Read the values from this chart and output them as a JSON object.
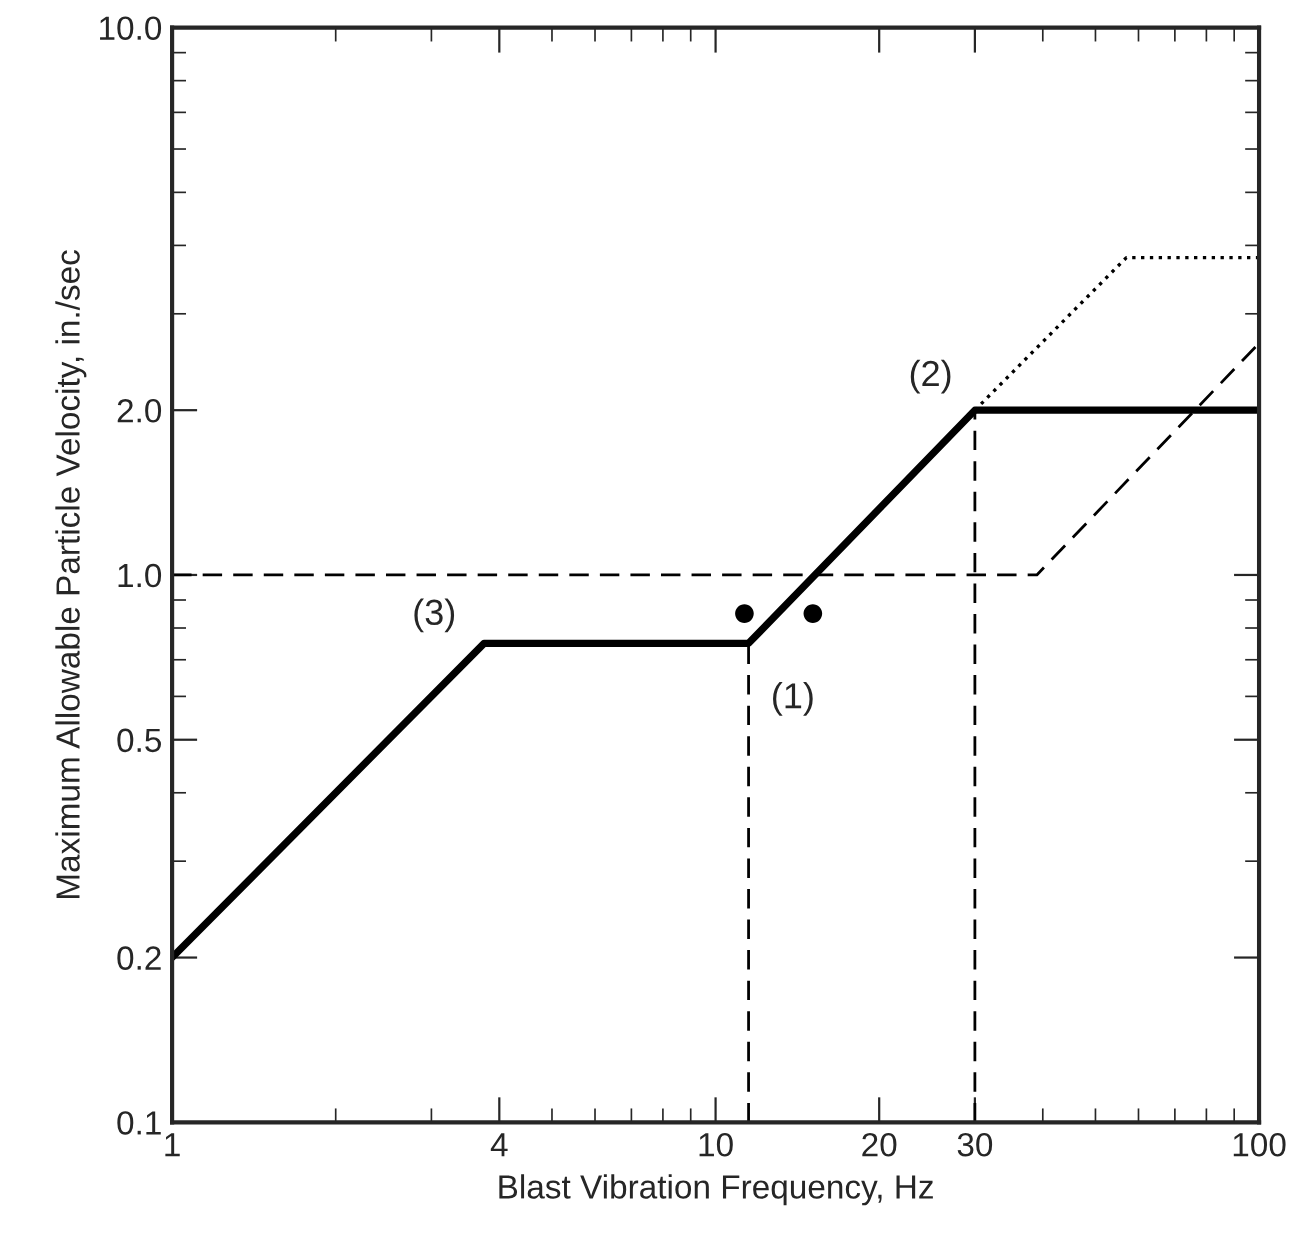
{
  "chart_data": {
    "type": "line",
    "xlabel": "Blast Vibration Frequency, Hz",
    "ylabel": "Maximum Allowable Particle Velocity, in./sec",
    "log": "xy",
    "grid": false,
    "legend": false,
    "xlim": [
      1,
      100
    ],
    "ylim": [
      0.1,
      10
    ],
    "xticks": [
      1,
      4,
      10,
      20,
      30,
      100
    ],
    "yticks": [
      0.1,
      0.2,
      0.5,
      {
        "value": 1,
        "label": "1.0"
      },
      {
        "value": 2,
        "label": "2.0"
      },
      {
        "value": 10,
        "label": "10.0"
      }
    ],
    "series": [
      {
        "color": "#000000",
        "line_style": "solid",
        "x": [
          1,
          3.75,
          11.5,
          30,
          100
        ],
        "values": [
          0.2,
          0.75,
          0.75,
          2.0,
          2.0
        ]
      },
      {
        "color": "#000000",
        "line_style": "dotted",
        "x": [
          30,
          57,
          100
        ],
        "values": [
          2.0,
          3.8,
          3.8
        ]
      },
      {
        "color": "#000000",
        "line_style": "dashed",
        "x": [
          1,
          39,
          100
        ],
        "values": [
          1.0,
          1.0,
          2.65
        ]
      },
      {
        "color": "#000000",
        "line_style": "dashed",
        "x": [
          11.5,
          11.5
        ],
        "values": [
          0.1,
          0.75
        ]
      },
      {
        "color": "#000000",
        "line_style": "dashed",
        "x": [
          30,
          30
        ],
        "values": [
          0.1,
          2.0
        ]
      },
      {
        "type": "scatter",
        "color": "#000000",
        "marker": "circle",
        "x": [
          11.3,
          15.1
        ],
        "values": [
          0.85,
          0.85
        ]
      }
    ],
    "annotations": [
      {
        "text": "(1)",
        "x": 11.5,
        "y": 0.75
      },
      {
        "text": "(2)",
        "x": 30,
        "y": 2.0
      },
      {
        "text": "(3)",
        "x": 3.75,
        "y": 0.75
      }
    ]
  }
}
